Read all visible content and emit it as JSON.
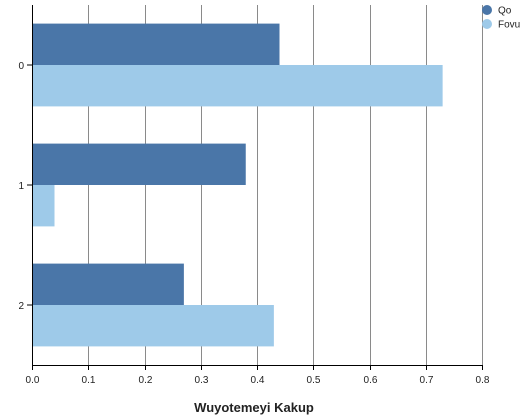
{
  "chart_data": {
    "type": "bar",
    "orientation": "horizontal",
    "title": "",
    "xlabel": "Wuyotemeyi Kakup",
    "ylabel": "",
    "categories": [
      "0",
      "1",
      "2"
    ],
    "series": [
      {
        "name": "Qo",
        "color": "#4a76a8",
        "values": [
          0.44,
          0.38,
          0.27
        ]
      },
      {
        "name": "Fovu",
        "color": "#9ecae9",
        "values": [
          0.73,
          0.04,
          0.43
        ]
      }
    ],
    "xlim": [
      0,
      0.8
    ],
    "xticks": [
      "0.0",
      "0.1",
      "0.2",
      "0.3",
      "0.4",
      "0.5",
      "0.6",
      "0.7",
      "0.8"
    ],
    "grid": true,
    "legend_position": "top-right"
  }
}
